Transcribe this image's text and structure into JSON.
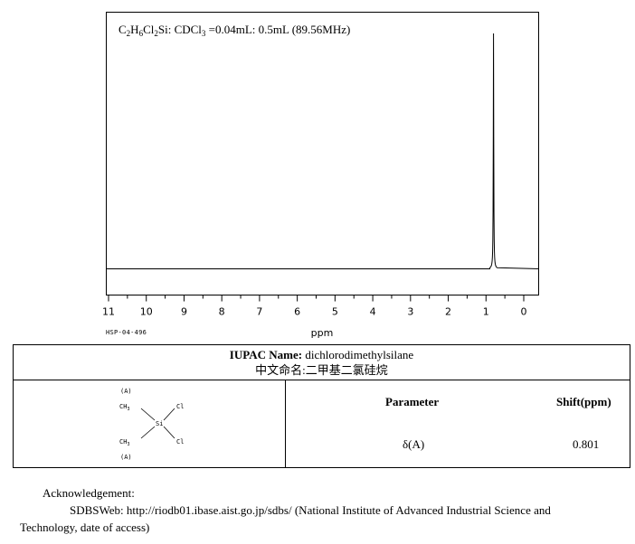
{
  "chart_data": {
    "type": "line",
    "title_parts": [
      "C",
      "2",
      "H",
      "6",
      "Cl",
      "2",
      "Si: CDCl",
      "3",
      " =0.04mL: 0.5mL (89.56MHz)"
    ],
    "xlabel": "ppm",
    "xlim": [
      11,
      0
    ],
    "xticks": [
      "11",
      "10",
      "9",
      "8",
      "7",
      "6",
      "5",
      "4",
      "3",
      "2",
      "1",
      "0"
    ],
    "peaks": [
      {
        "shift": 0.801,
        "relative_height": 1.0
      }
    ],
    "grid": false,
    "legend": "none"
  },
  "spectrum_code": "HSP-04-496",
  "compound": {
    "iupac_label": "IUPAC Name:",
    "iupac_name": "dichlorodimethylsilane",
    "chinese_label": "中文命名:",
    "chinese_name": "二甲基二氯硅烷"
  },
  "structure": {
    "labels": [
      "(A)",
      "CH",
      "3",
      "Cl",
      "Si",
      "CH",
      "3",
      "Cl",
      "(A)"
    ]
  },
  "table": {
    "header_param": "Parameter",
    "header_shift": "Shift(ppm)",
    "rows": [
      {
        "param": "δ(A)",
        "shift": "0.801"
      }
    ]
  },
  "acknowledgement": {
    "title": "Acknowledgement:",
    "line1": "SDBSWeb: http://riodb01.ibase.aist.go.jp/sdbs/ (National Institute of Advanced Industrial Science and",
    "line2": "Technology, date of access)"
  }
}
